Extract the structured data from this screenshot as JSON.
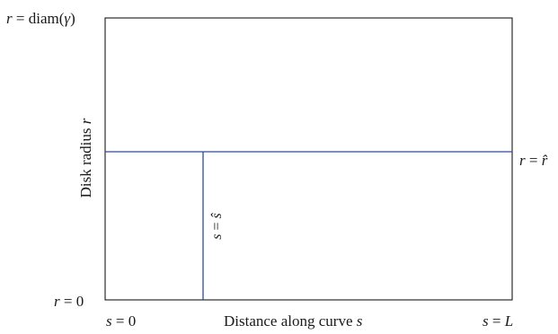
{
  "diagram": {
    "corner_labels": {
      "top_left": {
        "lhs": "r",
        "eq": " = ",
        "rhs": "diam(",
        "var": "γ",
        "close": ")"
      },
      "bottom_left": {
        "lhs": "r",
        "eq": " = ",
        "rhs": "0"
      }
    },
    "x_labels": {
      "left": {
        "lhs": "s",
        "eq": " = ",
        "rhs": "0"
      },
      "center_text": "Distance along curve ",
      "center_var": "s",
      "right": {
        "lhs": "s",
        "eq": " = ",
        "rhs": "L"
      }
    },
    "y_axis": {
      "text": "Disk radius ",
      "var": "r"
    },
    "horizontal_line_label": {
      "lhs": "r",
      "eq": " = ",
      "rhs": "r",
      "accent": "̂"
    },
    "vertical_line_label": {
      "lhs": "s",
      "eq": " = ",
      "rhs": "s",
      "accent": "̂"
    },
    "colors": {
      "frame": "#1a1a1a",
      "lines": "#2e4a9e"
    }
  }
}
